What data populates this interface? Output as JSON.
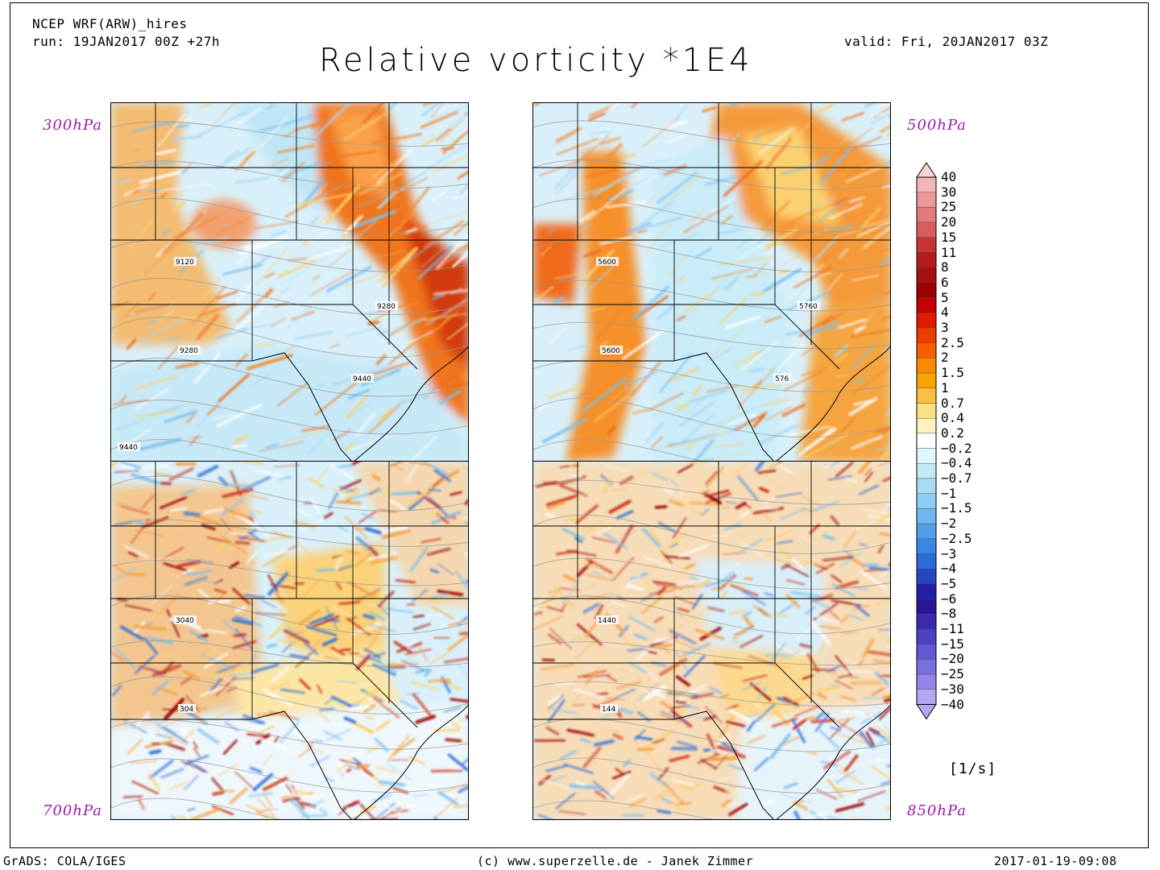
{
  "header": {
    "model": "NCEP WRF(ARW)_hires",
    "run": "run: 19JAN2017 00Z +27h",
    "valid": "valid: Fri, 20JAN2017 03Z",
    "title": "Relative vorticity *1E4"
  },
  "panels": [
    {
      "level": "300hPa",
      "contours": [
        "9120",
        "9280",
        "9280",
        "9440",
        "9440"
      ],
      "theme": "upper-trough"
    },
    {
      "level": "500hPa",
      "contours": [
        "5600",
        "5600",
        "5760",
        "576"
      ],
      "theme": "mid-trough"
    },
    {
      "level": "700hPa",
      "contours": [
        "3040",
        "304"
      ],
      "theme": "low-level"
    },
    {
      "level": "850hPa",
      "contours": [
        "1440",
        "144"
      ],
      "theme": "surface"
    }
  ],
  "colorbar": {
    "units": "[1/s]",
    "levels": [
      "40",
      "30",
      "25",
      "20",
      "15",
      "11",
      "8",
      "6",
      "5",
      "4",
      "3",
      "2.5",
      "2",
      "1.5",
      "1",
      "0.7",
      "0.4",
      "0.2",
      "−0.2",
      "−0.4",
      "−0.7",
      "−1",
      "−1.5",
      "−2",
      "−2.5",
      "−3",
      "−4",
      "−5",
      "−6",
      "−8",
      "−11",
      "−15",
      "−20",
      "−25",
      "−30",
      "−40"
    ],
    "colors": [
      "#f9d4d4",
      "#f3b6b6",
      "#eb9898",
      "#e37b7b",
      "#da5d5d",
      "#c83434",
      "#b51b1b",
      "#a80e0e",
      "#9c0000",
      "#c40000",
      "#de1a00",
      "#ee3c00",
      "#f75e00",
      "#f98a00",
      "#fba400",
      "#fcc041",
      "#fde07f",
      "#fff3bc",
      "#ffffff",
      "#e2f7fb",
      "#c3ebf6",
      "#a9dcf4",
      "#8ecdf2",
      "#70b8ee",
      "#519eea",
      "#3a86e3",
      "#2a6bd8",
      "#2447c4",
      "#221ea8",
      "#2b1597",
      "#3b2ab0",
      "#4d41c4",
      "#6357d6",
      "#7b6fe0",
      "#9685e9",
      "#b4a6f0"
    ]
  },
  "footer": {
    "left": "GrADS: COLA/IGES",
    "center": "(c) www.superzelle.de - Janek Zimmer",
    "right": "2017-01-19-09:08"
  }
}
